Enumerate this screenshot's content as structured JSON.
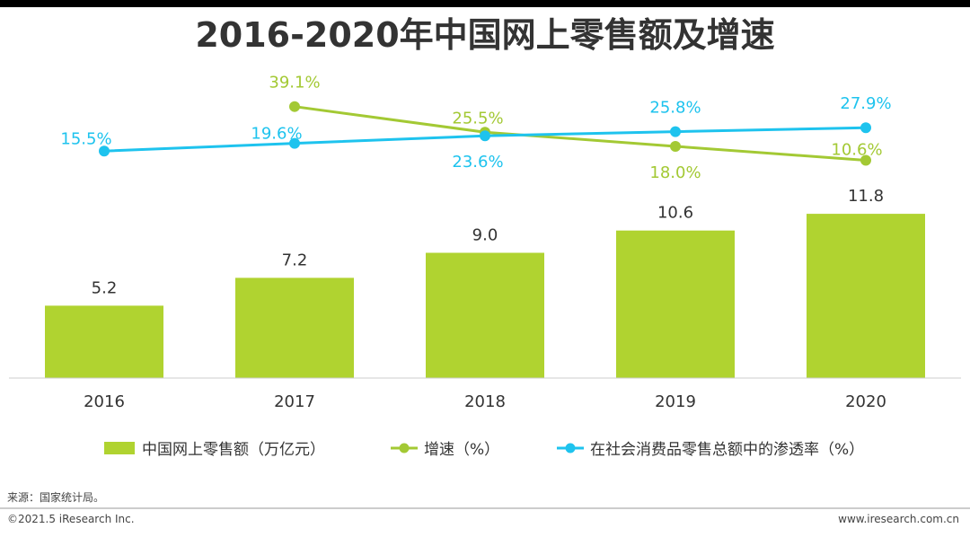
{
  "chart_data": {
    "type": "bar+line",
    "title": "2016-2020年中国网上零售额及增速",
    "categories": [
      "2016",
      "2017",
      "2018",
      "2019",
      "2020"
    ],
    "bar_series": {
      "name": "中国网上零售额（万亿元）",
      "values": [
        5.2,
        7.2,
        9.0,
        10.6,
        11.8
      ],
      "labels": [
        "5.2",
        "7.2",
        "9.0",
        "10.6",
        "11.8"
      ],
      "color": "#b0d330"
    },
    "line_series": [
      {
        "name": "增速（%）",
        "values": [
          null,
          39.1,
          25.5,
          18.0,
          10.6
        ],
        "labels": [
          "",
          "39.1%",
          "25.5%",
          "18.0%",
          "10.6%"
        ],
        "color": "#a3c934"
      },
      {
        "name": "在社会消费品零售总额中的渗透率（%）",
        "values": [
          15.5,
          19.6,
          23.6,
          25.8,
          27.9
        ],
        "labels": [
          "15.5%",
          "19.6%",
          "23.6%",
          "25.8%",
          "27.9%"
        ],
        "color": "#1ec3ee"
      }
    ],
    "ylim_bar": [
      0,
      14
    ]
  },
  "footer": {
    "source": "来源：国家统计局。",
    "copyright": "©2021.5 iResearch Inc.",
    "website": "www.iresearch.com.cn"
  }
}
